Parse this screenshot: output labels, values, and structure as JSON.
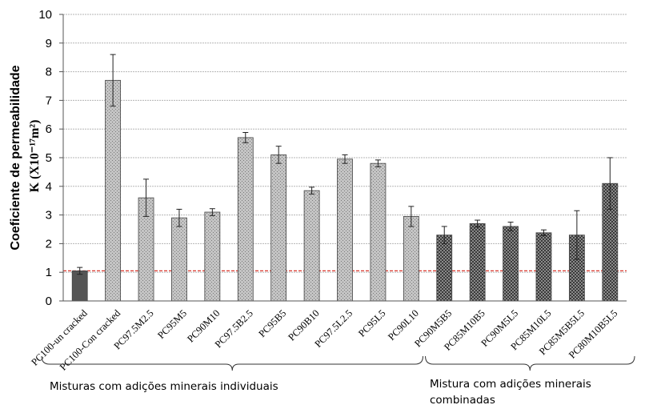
{
  "chart_data": {
    "type": "bar",
    "ylabel_line1": "Coeficiente de permeabilidade",
    "ylabel_line2": "K (X10⁻¹⁷m²)",
    "ylim": [
      0,
      10
    ],
    "yticks": [
      "0",
      "1",
      "2",
      "3",
      "4",
      "5",
      "6",
      "7",
      "8",
      "9",
      "10"
    ],
    "grid": true,
    "reference_line": {
      "y": 1.05,
      "color": "#d9362b",
      "style": "dashed"
    },
    "categories": [
      "PC100-un cracked",
      "PC100-Con cracked",
      "PC97.5M2.5",
      "PC95M5",
      "PC90M10",
      "PC97.5B2.5",
      "PC95B5",
      "PC90B10",
      "PC97.5L2.5",
      "PC95L5",
      "PC90L10",
      "PC90M5B5",
      "PC85M10B5",
      "PC90M5L5",
      "PC85M10L5",
      "PC85M5B5L5",
      "PC80M10B5L5"
    ],
    "values": [
      1.05,
      7.7,
      3.6,
      2.9,
      3.1,
      5.7,
      5.1,
      3.85,
      4.95,
      4.8,
      2.95,
      2.3,
      2.7,
      2.6,
      2.38,
      2.3,
      4.1
    ],
    "errors": [
      0.12,
      0.9,
      0.65,
      0.3,
      0.12,
      0.18,
      0.3,
      0.12,
      0.15,
      0.12,
      0.35,
      0.3,
      0.12,
      0.15,
      0.1,
      0.85,
      0.9
    ],
    "bar_styles": [
      "solid",
      "light",
      "light",
      "light",
      "light",
      "light",
      "light",
      "light",
      "light",
      "light",
      "light",
      "dark",
      "dark",
      "dark",
      "dark",
      "dark",
      "dark"
    ],
    "groups": [
      {
        "label": "Misturas com adições minerais individuais",
        "from": 0,
        "to": 10
      },
      {
        "label": "Mistura com adições minerais combinadas",
        "from": 11,
        "to": 16
      }
    ]
  }
}
